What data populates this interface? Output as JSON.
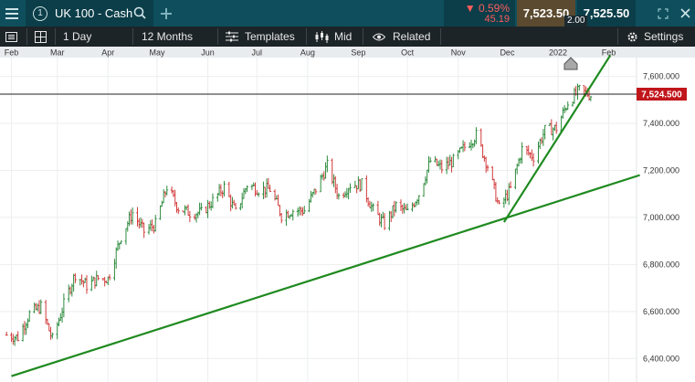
{
  "header": {
    "menu_icon": "hamburger-menu-icon",
    "tab_number": "1",
    "instrument_name": "UK 100 - Cash",
    "search_icon": "search-icon",
    "add_icon": "plus-icon",
    "change_percent": "▼ 0.59%",
    "change_points": "45.19",
    "sell_price": "7,523.50",
    "spread": "2.00",
    "buy_price": "7,525.50",
    "expand_icon": "expand-icon",
    "close_icon": "close-icon",
    "colors": {
      "bar_bg": "#0f4f5d",
      "down": "#ff5c5c",
      "sell_bg": "#5b4a2f"
    }
  },
  "toolbar": {
    "layout_icon": "layout-icon",
    "grid_icon": "grid-icon",
    "interval": "1 Day",
    "period": "12 Months",
    "templates_label": "Templates",
    "templates_icon": "sliders-icon",
    "price_type_label": "Mid",
    "price_type_icon": "candles-icon",
    "related_label": "Related",
    "related_icon": "eye-icon",
    "settings_label": "Settings",
    "settings_icon": "gear-icon"
  },
  "chart_data": {
    "type": "ohlc",
    "x_ticks": [
      "Feb",
      "Mar",
      "Apr",
      "May",
      "Jun",
      "Jul",
      "Aug",
      "Sep",
      "Oct",
      "Nov",
      "Dec",
      "2022",
      "Feb"
    ],
    "y_ticks": [
      "7,600.000",
      "7,400.000",
      "7,200.000",
      "7,000.000",
      "6,800.000",
      "6,600.000",
      "6,400.000"
    ],
    "y_values": [
      7600,
      7400,
      7200,
      7000,
      6800,
      6600,
      6400
    ],
    "ylim": [
      6300,
      7680
    ],
    "current_price_label": "7,524.500",
    "current_price": 7524.5,
    "up_color": "#2e8b3e",
    "down_color": "#d23b3b",
    "trendline_color": "#1f8a1f",
    "trendlines": [
      {
        "from": [
          "2021-02-01",
          6325
        ],
        "to": [
          "2022-02-20",
          7180
        ]
      },
      {
        "from": [
          "2021-11-29",
          6980
        ],
        "to": [
          "2022-02-02",
          7690
        ]
      }
    ],
    "approx_closes": [
      [
        "2021-01-29",
        6500
      ],
      [
        "2021-02-05",
        6490
      ],
      [
        "2021-02-12",
        6590
      ],
      [
        "2021-02-19",
        6620
      ],
      [
        "2021-02-26",
        6480
      ],
      [
        "2021-03-05",
        6630
      ],
      [
        "2021-03-12",
        6760
      ],
      [
        "2021-03-19",
        6710
      ],
      [
        "2021-03-26",
        6740
      ],
      [
        "2021-04-01",
        6740
      ],
      [
        "2021-04-09",
        6920
      ],
      [
        "2021-04-16",
        7020
      ],
      [
        "2021-04-23",
        6940
      ],
      [
        "2021-04-30",
        6970
      ],
      [
        "2021-05-07",
        7130
      ],
      [
        "2021-05-14",
        7040
      ],
      [
        "2021-05-21",
        7020
      ],
      [
        "2021-05-28",
        7020
      ],
      [
        "2021-06-04",
        7070
      ],
      [
        "2021-06-11",
        7130
      ],
      [
        "2021-06-18",
        7020
      ],
      [
        "2021-06-25",
        7140
      ],
      [
        "2021-07-02",
        7120
      ],
      [
        "2021-07-09",
        7120
      ],
      [
        "2021-07-16",
        7010
      ],
      [
        "2021-07-23",
        7030
      ],
      [
        "2021-07-30",
        7030
      ],
      [
        "2021-08-06",
        7120
      ],
      [
        "2021-08-13",
        7220
      ],
      [
        "2021-08-20",
        7090
      ],
      [
        "2021-08-27",
        7140
      ],
      [
        "2021-09-03",
        7140
      ],
      [
        "2021-09-10",
        7030
      ],
      [
        "2021-09-17",
        6970
      ],
      [
        "2021-09-24",
        7050
      ],
      [
        "2021-10-01",
        7020
      ],
      [
        "2021-10-08",
        7100
      ],
      [
        "2021-10-15",
        7240
      ],
      [
        "2021-10-22",
        7210
      ],
      [
        "2021-10-29",
        7240
      ],
      [
        "2021-11-05",
        7300
      ],
      [
        "2021-11-12",
        7350
      ],
      [
        "2021-11-19",
        7220
      ],
      [
        "2021-11-26",
        7040
      ],
      [
        "2021-12-03",
        7120
      ],
      [
        "2021-12-10",
        7290
      ],
      [
        "2021-12-17",
        7260
      ],
      [
        "2021-12-24",
        7370
      ],
      [
        "2021-12-31",
        7380
      ],
      [
        "2022-01-07",
        7490
      ],
      [
        "2022-01-14",
        7540
      ],
      [
        "2022-01-21",
        7520
      ]
    ]
  }
}
